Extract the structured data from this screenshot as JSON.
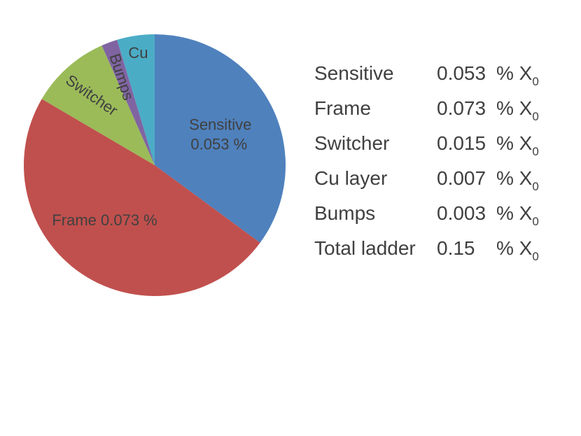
{
  "chart_data": {
    "type": "pie",
    "series": [
      {
        "name": "Sensitive",
        "value": 0.053,
        "label_name": "Sensitive",
        "label_value": "0.053 %",
        "color": "#4F81BD"
      },
      {
        "name": "Frame",
        "value": 0.073,
        "label_name": "Frame",
        "label_value": "0.073 %",
        "color": "#C0504D"
      },
      {
        "name": "Switcher",
        "value": 0.015,
        "label_name": "Switcher",
        "label_value": "",
        "color": "#9BBB59"
      },
      {
        "name": "Bumps",
        "value": 0.003,
        "label_name": "Bumps",
        "label_value": "",
        "color": "#8064A2"
      },
      {
        "name": "Cu layer",
        "value": 0.007,
        "label_name": "Cu",
        "label_value": "",
        "color": "#4BACC6"
      }
    ]
  },
  "table": {
    "rows": [
      {
        "name": "Sensitive",
        "value": "0.053",
        "unit": "% X",
        "sub": "0"
      },
      {
        "name": "Frame",
        "value": "0.073",
        "unit": "% X",
        "sub": "0"
      },
      {
        "name": "Switcher",
        "value": "0.015",
        "unit": "% X",
        "sub": "0"
      },
      {
        "name": "Cu layer",
        "value": "0.007",
        "unit": "% X",
        "sub": "0"
      },
      {
        "name": "Bumps",
        "value": "0.003",
        "unit": "% X",
        "sub": "0"
      },
      {
        "name": "Total ladder",
        "value": "0.15",
        "unit": "% X",
        "sub": "0"
      }
    ]
  }
}
